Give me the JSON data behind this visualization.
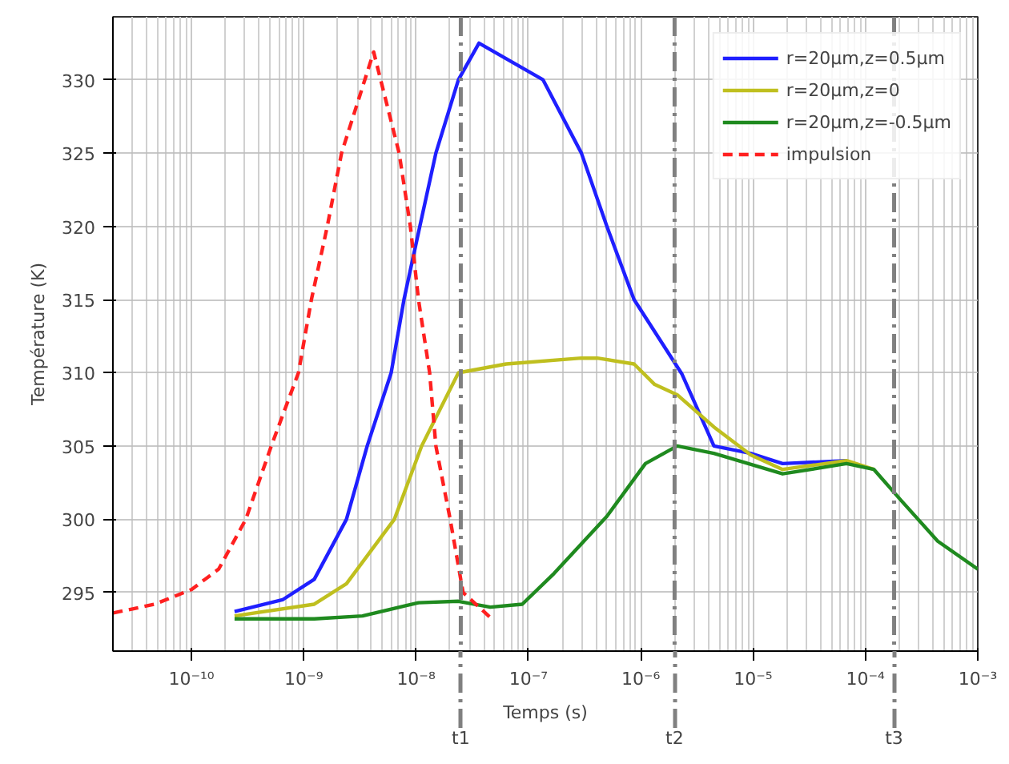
{
  "chart_data": {
    "type": "line",
    "xlabel": "Temps (s)",
    "ylabel": "Température (K)",
    "log": "x",
    "xlim": [
      2e-11,
      0.001
    ],
    "ylim": [
      291,
      334.3
    ],
    "xticks": [
      {
        "value": 1e-10,
        "label": "10⁻¹⁰"
      },
      {
        "value": 1e-09,
        "label": "10⁻⁹"
      },
      {
        "value": 1e-08,
        "label": "10⁻⁸"
      },
      {
        "value": 1e-07,
        "label": "10⁻⁷"
      },
      {
        "value": 1e-06,
        "label": "10⁻⁶"
      },
      {
        "value": 1e-05,
        "label": "10⁻⁵"
      },
      {
        "value": 0.0001,
        "label": "10⁻⁴"
      },
      {
        "value": 0.001,
        "label": "10⁻³"
      }
    ],
    "yticks": [
      295,
      300,
      305,
      310,
      315,
      320,
      325,
      330
    ],
    "grid": true,
    "legend": "top right",
    "series": [
      {
        "name": "r=20µm,z=0.5µm",
        "color": "#1f1fff",
        "line_style": "solid",
        "x": [
          2.42e-10,
          6.47e-10,
          1.24e-09,
          2.4e-09,
          3.67e-09,
          6e-09,
          7.8e-09,
          1.08e-08,
          1.5e-08,
          2.38e-08,
          3.63e-08,
          1.35e-07,
          2.96e-07,
          4.99e-07,
          8.71e-07,
          2.33e-06,
          4.48e-06,
          9.52e-06,
          1.83e-05,
          6.79e-05
        ],
        "values": [
          293.7,
          294.5,
          295.9,
          300,
          305,
          310,
          315,
          320,
          325,
          330,
          332.5,
          330,
          325,
          320,
          315,
          309.9,
          305,
          304.5,
          303.8,
          304
        ]
      },
      {
        "name": "r=20µm,z=0",
        "color": "#bfbf1f",
        "line_style": "solid",
        "x": [
          2.42e-10,
          1.24e-09,
          2.4e-09,
          6.41e-09,
          1.12e-08,
          2.38e-08,
          6.34e-08,
          2.96e-07,
          4.1e-07,
          8.71e-07,
          1.33e-06,
          2.11e-06,
          4.48e-06,
          9.52e-06,
          1.83e-05,
          6.79e-05,
          0.000119
        ],
        "values": [
          293.4,
          294.2,
          295.6,
          300,
          305,
          310,
          310.6,
          311,
          311,
          310.6,
          309.2,
          308.5,
          306.3,
          304.4,
          303.4,
          304,
          303.4
        ]
      },
      {
        "name": "r=20µm,z=-0.5µm",
        "color": "#1f8a1f",
        "line_style": "solid",
        "x": [
          2.42e-10,
          1.24e-09,
          3.33e-09,
          1.05e-08,
          2.38e-08,
          4.57e-08,
          8.81e-08,
          1.69e-07,
          4.99e-07,
          1.1e-06,
          2.11e-06,
          4.48e-06,
          1.83e-05,
          6.79e-05,
          0.000119,
          0.000207,
          0.00044,
          0.001
        ],
        "values": [
          293.2,
          293.2,
          293.4,
          294.3,
          294.4,
          294.0,
          294.2,
          296.3,
          300.2,
          303.8,
          305,
          304.5,
          303.1,
          303.8,
          303.4,
          301.3,
          298.5,
          296.6
        ]
      },
      {
        "name": "impulsion",
        "color": "#ff2020",
        "line_style": "dashed",
        "x": [
          2.01e-11,
          4.71e-11,
          1e-10,
          1.75e-10,
          3.05e-10,
          5.14e-10,
          8.97e-10,
          1.17e-09,
          1.62e-09,
          2.17e-09,
          4.19e-09,
          7.06e-09,
          8.89e-09,
          1.05e-08,
          1.32e-08,
          1.5e-08,
          2.01e-08,
          2.62e-08,
          4.88e-08
        ],
        "values": [
          293.6,
          294.2,
          295.2,
          296.6,
          300,
          305,
          310,
          315,
          320,
          325,
          331.9,
          325,
          320,
          315,
          310,
          305,
          300,
          295,
          293.1
        ]
      }
    ],
    "ref_lines": [
      {
        "axis": "x",
        "value": 2.5e-08,
        "label": "t1",
        "color": "#808080",
        "line_style": "dashdot"
      },
      {
        "axis": "x",
        "value": 2e-06,
        "label": "t2",
        "color": "#808080",
        "line_style": "dashdot"
      },
      {
        "axis": "x",
        "value": 0.00018,
        "label": "t3",
        "color": "#808080",
        "line_style": "dashdot"
      }
    ]
  }
}
